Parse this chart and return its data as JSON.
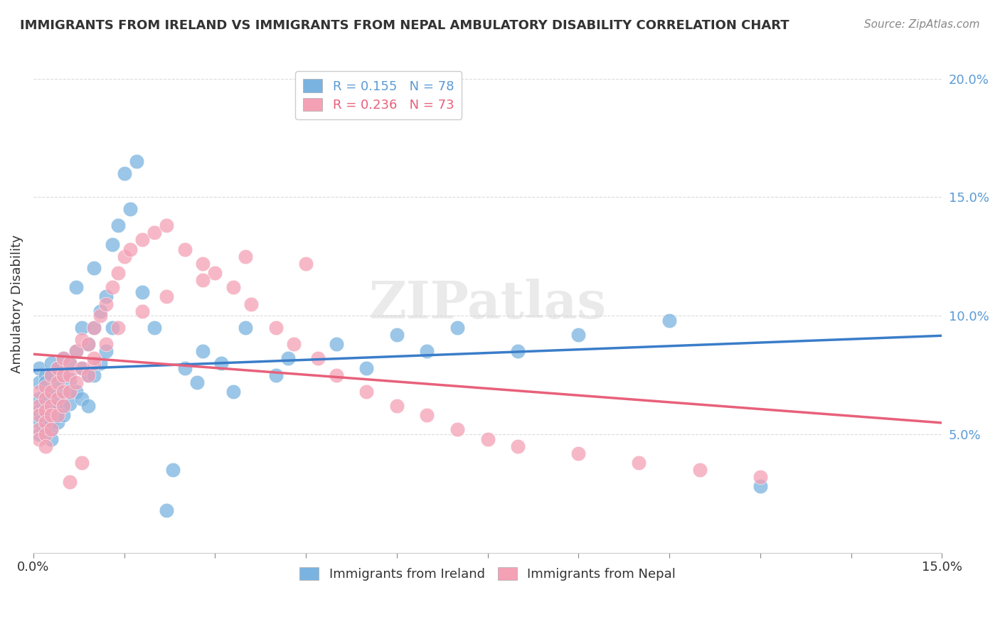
{
  "title": "IMMIGRANTS FROM IRELAND VS IMMIGRANTS FROM NEPAL AMBULATORY DISABILITY CORRELATION CHART",
  "source": "Source: ZipAtlas.com",
  "ylabel": "Ambulatory Disability",
  "xlabel": "",
  "xlim": [
    0.0,
    0.15
  ],
  "ylim": [
    0.0,
    0.21
  ],
  "xticks": [
    0.0,
    0.015,
    0.03,
    0.045,
    0.06,
    0.075,
    0.09,
    0.105,
    0.12,
    0.135,
    0.15
  ],
  "xticklabels": [
    "0.0%",
    "",
    "",
    "",
    "",
    "",
    "",
    "",
    "",
    "",
    "15.0%"
  ],
  "yticks": [
    0.0,
    0.05,
    0.1,
    0.15,
    0.2
  ],
  "yticklabels": [
    "",
    "5.0%",
    "10.0%",
    "15.0%",
    "20.0%"
  ],
  "ireland_color": "#7ab3e0",
  "nepal_color": "#f4a0b5",
  "ireland_line_color": "#3a7dc9",
  "nepal_line_color": "#e8607a",
  "ireland_R": 0.155,
  "ireland_N": 78,
  "nepal_R": 0.236,
  "nepal_N": 73,
  "legend_ireland": "Immigrants from Ireland",
  "legend_nepal": "Immigrants from Nepal",
  "watermark": "ZIPatlas",
  "ireland_x": [
    0.001,
    0.001,
    0.001,
    0.001,
    0.001,
    0.001,
    0.002,
    0.002,
    0.002,
    0.002,
    0.002,
    0.002,
    0.002,
    0.003,
    0.003,
    0.003,
    0.003,
    0.003,
    0.003,
    0.003,
    0.003,
    0.004,
    0.004,
    0.004,
    0.004,
    0.004,
    0.005,
    0.005,
    0.005,
    0.005,
    0.005,
    0.006,
    0.006,
    0.006,
    0.006,
    0.007,
    0.007,
    0.007,
    0.008,
    0.008,
    0.008,
    0.009,
    0.009,
    0.009,
    0.01,
    0.01,
    0.01,
    0.011,
    0.011,
    0.012,
    0.012,
    0.013,
    0.013,
    0.014,
    0.015,
    0.016,
    0.017,
    0.018,
    0.02,
    0.022,
    0.023,
    0.025,
    0.027,
    0.028,
    0.031,
    0.033,
    0.035,
    0.04,
    0.042,
    0.05,
    0.055,
    0.06,
    0.065,
    0.07,
    0.08,
    0.09,
    0.105,
    0.12
  ],
  "ireland_y": [
    0.065,
    0.072,
    0.078,
    0.06,
    0.055,
    0.05,
    0.068,
    0.075,
    0.072,
    0.063,
    0.058,
    0.055,
    0.052,
    0.08,
    0.075,
    0.068,
    0.063,
    0.058,
    0.055,
    0.052,
    0.048,
    0.078,
    0.072,
    0.065,
    0.06,
    0.055,
    0.082,
    0.075,
    0.068,
    0.062,
    0.058,
    0.08,
    0.073,
    0.068,
    0.063,
    0.112,
    0.085,
    0.068,
    0.095,
    0.078,
    0.065,
    0.088,
    0.075,
    0.062,
    0.12,
    0.095,
    0.075,
    0.102,
    0.08,
    0.108,
    0.085,
    0.13,
    0.095,
    0.138,
    0.16,
    0.145,
    0.165,
    0.11,
    0.095,
    0.018,
    0.035,
    0.078,
    0.072,
    0.085,
    0.08,
    0.068,
    0.095,
    0.075,
    0.082,
    0.088,
    0.078,
    0.092,
    0.085,
    0.095,
    0.085,
    0.092,
    0.098,
    0.028
  ],
  "nepal_x": [
    0.001,
    0.001,
    0.001,
    0.001,
    0.001,
    0.002,
    0.002,
    0.002,
    0.002,
    0.002,
    0.002,
    0.003,
    0.003,
    0.003,
    0.003,
    0.003,
    0.004,
    0.004,
    0.004,
    0.004,
    0.005,
    0.005,
    0.005,
    0.005,
    0.006,
    0.006,
    0.006,
    0.007,
    0.007,
    0.008,
    0.008,
    0.009,
    0.009,
    0.01,
    0.01,
    0.011,
    0.012,
    0.013,
    0.014,
    0.015,
    0.016,
    0.018,
    0.02,
    0.022,
    0.025,
    0.028,
    0.03,
    0.033,
    0.036,
    0.04,
    0.043,
    0.047,
    0.05,
    0.055,
    0.06,
    0.065,
    0.07,
    0.075,
    0.08,
    0.09,
    0.1,
    0.11,
    0.12,
    0.045,
    0.035,
    0.028,
    0.022,
    0.018,
    0.014,
    0.012,
    0.01,
    0.008,
    0.006
  ],
  "nepal_y": [
    0.062,
    0.068,
    0.058,
    0.052,
    0.048,
    0.07,
    0.065,
    0.06,
    0.055,
    0.05,
    0.045,
    0.075,
    0.068,
    0.062,
    0.058,
    0.052,
    0.078,
    0.072,
    0.065,
    0.058,
    0.082,
    0.075,
    0.068,
    0.062,
    0.08,
    0.075,
    0.068,
    0.085,
    0.072,
    0.09,
    0.078,
    0.088,
    0.075,
    0.095,
    0.08,
    0.1,
    0.105,
    0.112,
    0.118,
    0.125,
    0.128,
    0.132,
    0.135,
    0.138,
    0.128,
    0.122,
    0.118,
    0.112,
    0.105,
    0.095,
    0.088,
    0.082,
    0.075,
    0.068,
    0.062,
    0.058,
    0.052,
    0.048,
    0.045,
    0.042,
    0.038,
    0.035,
    0.032,
    0.122,
    0.125,
    0.115,
    0.108,
    0.102,
    0.095,
    0.088,
    0.082,
    0.038,
    0.03
  ]
}
